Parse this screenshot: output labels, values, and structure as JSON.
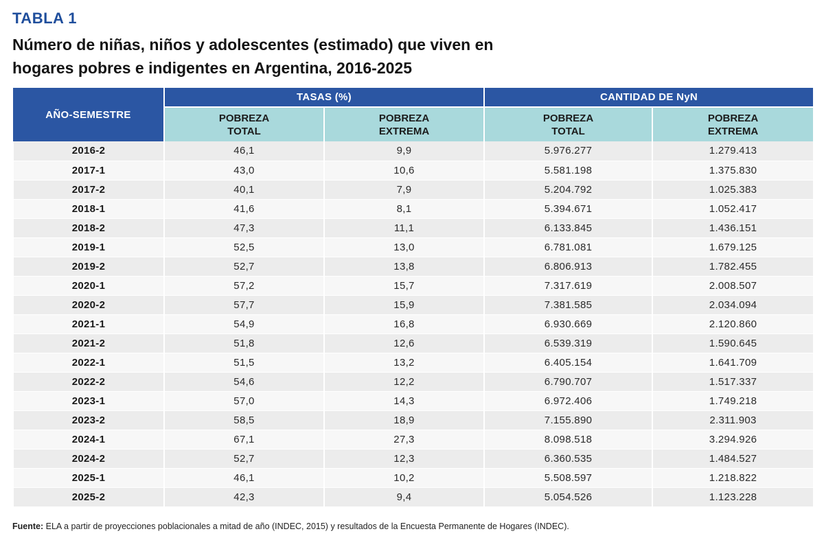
{
  "table_label": "TABLA 1",
  "title_line1": "Número de niñas, niños y adolescentes (estimado) que viven en",
  "title_line2": "hogares pobres e indigentes en Argentina, 2016-2025",
  "header": {
    "year_col": "AÑO-SEMESTRE",
    "group_rates": "TASAS (%)",
    "group_counts": "CANTIDAD DE NyN",
    "sub": {
      "rate_total_1": "POBREZA",
      "rate_total_2": "TOTAL",
      "rate_extreme_1": "POBREZA",
      "rate_extreme_2": "EXTREMA",
      "count_total_1": "POBREZA",
      "count_total_2": "TOTAL",
      "count_extreme_1": "POBREZA",
      "count_extreme_2": "EXTREMA"
    }
  },
  "rows": [
    [
      "2016-2",
      "46,1",
      "9,9",
      "5.976.277",
      "1.279.413"
    ],
    [
      "2017-1",
      "43,0",
      "10,6",
      "5.581.198",
      "1.375.830"
    ],
    [
      "2017-2",
      "40,1",
      "7,9",
      "5.204.792",
      "1.025.383"
    ],
    [
      "2018-1",
      "41,6",
      "8,1",
      "5.394.671",
      "1.052.417"
    ],
    [
      "2018-2",
      "47,3",
      "11,1",
      "6.133.845",
      "1.436.151"
    ],
    [
      "2019-1",
      "52,5",
      "13,0",
      "6.781.081",
      "1.679.125"
    ],
    [
      "2019-2",
      "52,7",
      "13,8",
      "6.806.913",
      "1.782.455"
    ],
    [
      "2020-1",
      "57,2",
      "15,7",
      "7.317.619",
      "2.008.507"
    ],
    [
      "2020-2",
      "57,7",
      "15,9",
      "7.381.585",
      "2.034.094"
    ],
    [
      "2021-1",
      "54,9",
      "16,8",
      "6.930.669",
      "2.120.860"
    ],
    [
      "2021-2",
      "51,8",
      "12,6",
      "6.539.319",
      "1.590.645"
    ],
    [
      "2022-1",
      "51,5",
      "13,2",
      "6.405.154",
      "1.641.709"
    ],
    [
      "2022-2",
      "54,6",
      "12,2",
      "6.790.707",
      "1.517.337"
    ],
    [
      "2023-1",
      "57,0",
      "14,3",
      "6.972.406",
      "1.749.218"
    ],
    [
      "2023-2",
      "58,5",
      "18,9",
      "7.155.890",
      "2.311.903"
    ],
    [
      "2024-1",
      "67,1",
      "27,3",
      "8.098.518",
      "3.294.926"
    ],
    [
      "2024-2",
      "52,7",
      "12,3",
      "6.360.535",
      "1.484.527"
    ],
    [
      "2025-1",
      "46,1",
      "10,2",
      "5.508.597",
      "1.218.822"
    ],
    [
      "2025-2",
      "42,3",
      "9,4",
      "5.054.526",
      "1.123.228"
    ]
  ],
  "source_label": "Fuente:",
  "source_text": "ELA a partir de proyecciones poblacionales a mitad de año (INDEC, 2015) y resultados de la Encuesta Permanente de Hogares (INDEC).",
  "colors": {
    "header_blue": "#2b56a3",
    "subheader_teal": "#a9d9dc",
    "label_blue": "#1f4e9c",
    "row_odd": "#ececec",
    "row_even": "#f7f7f7"
  }
}
